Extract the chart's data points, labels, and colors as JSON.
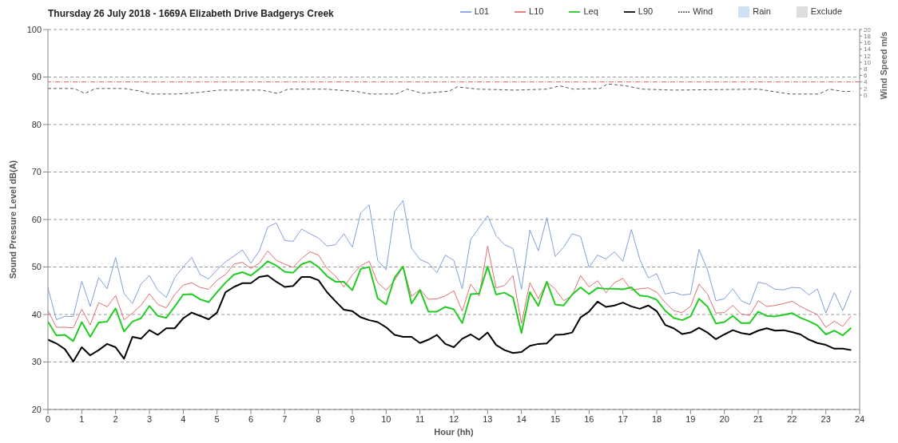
{
  "chart_data": {
    "type": "line",
    "title": "Thursday 26 July 2018 - 1669A Elizabeth Drive Badgerys Creek",
    "xlabel": "Hour (hh)",
    "ylabel": "Sound Pressure Level dB(A)",
    "y2label": "Wind Speed m/s",
    "x": [
      0,
      0.25,
      0.5,
      0.75,
      1,
      1.25,
      1.5,
      1.75,
      2,
      2.25,
      2.5,
      2.75,
      3,
      3.25,
      3.5,
      3.75,
      4,
      4.25,
      4.5,
      4.75,
      5,
      5.25,
      5.5,
      5.75,
      6,
      6.25,
      6.5,
      6.75,
      7,
      7.25,
      7.5,
      7.75,
      8,
      8.25,
      8.5,
      8.75,
      9,
      9.25,
      9.5,
      9.75,
      10,
      10.25,
      10.5,
      10.75,
      11,
      11.25,
      11.5,
      11.75,
      12,
      12.25,
      12.5,
      12.75,
      13,
      13.25,
      13.5,
      13.75,
      14,
      14.25,
      14.5,
      14.75,
      15,
      15.25,
      15.5,
      15.75,
      16,
      16.25,
      16.5,
      16.75,
      17,
      17.25,
      17.5,
      17.75,
      18,
      18.25,
      18.5,
      18.75,
      19,
      19.25,
      19.5,
      19.75,
      20,
      20.25,
      20.5,
      20.75,
      21,
      21.25,
      21.5,
      21.75,
      22,
      22.25,
      22.5,
      22.75,
      23,
      23.25,
      23.5,
      23.75
    ],
    "series": [
      {
        "name": "L01",
        "color": "#7f9fdf",
        "values": [
          45.6,
          38.9,
          39.6,
          39.6,
          47,
          41.7,
          47.8,
          45.4,
          52,
          44.4,
          42.3,
          46.4,
          48.2,
          45.1,
          43.6,
          47.8,
          50,
          52,
          48.4,
          47.5,
          49.4,
          51.1,
          52.3,
          53.6,
          50.8,
          53.4,
          58.4,
          59.3,
          55.6,
          55.4,
          58,
          57,
          56.1,
          54.4,
          54.7,
          57,
          54.2,
          61.4,
          63.1,
          51.4,
          49.4,
          61.7,
          64,
          54,
          51.6,
          50.8,
          48.8,
          52.5,
          51.4,
          45.4,
          55.8,
          58.3,
          60.8,
          56.6,
          54.7,
          53.9,
          45.3,
          57.8,
          53.4,
          60.4,
          52.2,
          54.2,
          57,
          56.4,
          49.9,
          52.5,
          51.7,
          53.2,
          51.2,
          57.9,
          51.6,
          47.7,
          48.6,
          44.3,
          44.7,
          44.1,
          44.3,
          53.7,
          49.4,
          42.9,
          43.3,
          45.4,
          42.9,
          42.1,
          46.8,
          46.4,
          45.3,
          45.2,
          45.7,
          45.6,
          44.1,
          45.4,
          40.3,
          44.6,
          40.8,
          45.1
        ]
      },
      {
        "name": "L10",
        "color": "#e07070",
        "values": [
          40.8,
          37.3,
          37.3,
          37.2,
          41.1,
          37.8,
          42.5,
          41.6,
          44,
          38.9,
          40.3,
          41.9,
          44.4,
          42.1,
          41.4,
          44.2,
          46.2,
          46.7,
          45.7,
          45.3,
          47.2,
          48.4,
          50.6,
          51,
          49.7,
          50.8,
          53.4,
          51.4,
          50.6,
          49.9,
          51.8,
          53.2,
          52.5,
          49.7,
          48.1,
          45.8,
          48.3,
          50.3,
          51.2,
          46.7,
          45.1,
          47.2,
          50,
          43.8,
          45.3,
          43.2,
          43.3,
          43.9,
          45,
          40.7,
          46.4,
          43.9,
          54.4,
          45.6,
          46.1,
          48.2,
          38.1,
          46.7,
          43.3,
          46.9,
          45.3,
          42.9,
          44,
          48.2,
          45.8,
          47.1,
          44.6,
          46.7,
          47.6,
          45.1,
          45.4,
          45.6,
          44.7,
          42.5,
          40.8,
          40.4,
          41.7,
          46.4,
          44.3,
          40.3,
          40.4,
          41.9,
          40.1,
          39.8,
          42.9,
          41.7,
          41.9,
          42.3,
          42.8,
          41.7,
          40.8,
          40,
          37.3,
          38.6,
          37.5,
          39.7
        ]
      },
      {
        "name": "Leq",
        "color": "#22cc22",
        "values": [
          38.5,
          35.6,
          35.7,
          34.4,
          38.4,
          35.3,
          38.3,
          38.5,
          41.3,
          36.4,
          38.5,
          39.2,
          41.8,
          39.7,
          39.3,
          41.7,
          44.2,
          44.3,
          43.2,
          42.6,
          44.7,
          46.7,
          48.4,
          48.9,
          48.2,
          49.6,
          51.2,
          50.3,
          49,
          48.8,
          50.6,
          51.2,
          50,
          48.1,
          46.9,
          46.9,
          45.1,
          49.6,
          50,
          43.4,
          42.1,
          47.8,
          50.1,
          42.3,
          45.1,
          40.6,
          40.6,
          41.6,
          41.1,
          38.2,
          44.3,
          44.4,
          50.1,
          44.2,
          44.6,
          43.6,
          36.1,
          44.7,
          41.8,
          46.9,
          42.1,
          41.9,
          44.2,
          45.7,
          44.3,
          45.6,
          45.4,
          45.4,
          45.3,
          45.7,
          44,
          43.8,
          43.1,
          40.8,
          39.3,
          38.8,
          39.6,
          43.3,
          41.7,
          38.1,
          38.4,
          39.7,
          38.2,
          38.2,
          40.6,
          39.7,
          39.6,
          39.9,
          40.3,
          39.3,
          38.6,
          37.7,
          35.8,
          36.6,
          35.6,
          37.2
        ]
      },
      {
        "name": "L90",
        "color": "#000000",
        "values": [
          34.7,
          33.9,
          32.7,
          30.1,
          33.1,
          31.4,
          32.5,
          33.8,
          33.1,
          30.7,
          35.3,
          34.9,
          36.7,
          35.7,
          37.1,
          37.1,
          39.2,
          40.4,
          39.7,
          39,
          40.4,
          44.7,
          45.8,
          46.6,
          46.6,
          47.9,
          48.2,
          46.9,
          45.8,
          46,
          47.9,
          47.9,
          47.2,
          44.7,
          42.8,
          41,
          40.7,
          39.4,
          38.8,
          38.4,
          37.3,
          35.7,
          35.3,
          35.3,
          34,
          34.7,
          35.7,
          33.8,
          33.1,
          34.9,
          35.8,
          34.7,
          36.2,
          33.6,
          32.5,
          31.9,
          32.1,
          33.4,
          33.8,
          33.9,
          35.7,
          35.8,
          36.2,
          39.4,
          40.6,
          42.7,
          41.6,
          41.9,
          42.5,
          41.7,
          41.2,
          41.9,
          40.7,
          37.8,
          37.1,
          35.9,
          36.2,
          37.2,
          36.2,
          34.8,
          35.8,
          36.7,
          36.1,
          35.8,
          36.6,
          37.1,
          36.6,
          36.7,
          36.3,
          35.8,
          34.7,
          34,
          33.6,
          32.8,
          32.8,
          32.5
        ]
      },
      {
        "name": "Wind",
        "color": "#555555",
        "axis": "y2",
        "line_style": "dashed",
        "x": [
          0,
          0.78,
          1.09,
          1.41,
          2.26,
          2.73,
          3.04,
          3.83,
          4.45,
          5.07,
          6.32,
          6.79,
          7.1,
          8.2,
          9.13,
          9.52,
          10.3,
          10.62,
          11.08,
          11.87,
          12.1,
          12.72,
          13.82,
          14.75,
          15.14,
          15.53,
          16.32,
          16.55,
          17.1,
          17.56,
          18.5,
          21,
          21.94,
          22.79,
          23.1,
          23.5,
          23.81
        ],
        "values": [
          2.0,
          2.0,
          0.5,
          2.0,
          2.0,
          1.2,
          0.3,
          0.3,
          0.8,
          1.5,
          1.5,
          0.5,
          1.8,
          1.8,
          1.1,
          0.3,
          0.3,
          1.8,
          0.5,
          1.2,
          2.5,
          1.8,
          1.5,
          1.8,
          2.8,
          1.8,
          2.0,
          3.4,
          2.8,
          1.8,
          1.5,
          1.8,
          0.3,
          0.3,
          1.8,
          1.1,
          1.1
        ]
      },
      {
        "name": "Rain",
        "type": "area",
        "color": "#cfe2f3",
        "values": [
          null,
          null,
          null,
          null,
          null,
          null,
          null,
          null,
          null,
          null,
          null,
          null,
          null,
          null,
          null,
          null,
          null,
          null,
          null,
          null,
          null,
          null,
          null,
          null,
          null,
          null,
          null,
          null,
          null,
          null,
          null,
          null,
          null,
          null,
          null,
          null,
          null,
          null,
          null,
          null,
          null,
          null,
          null,
          null,
          null,
          null,
          null,
          null,
          null,
          null,
          null,
          null,
          null,
          null,
          null,
          null,
          null,
          null,
          null,
          null,
          null,
          null,
          null,
          null,
          null,
          null,
          null,
          null,
          null,
          null,
          null,
          null,
          null,
          null,
          null,
          null,
          null,
          null,
          null,
          null,
          null,
          null,
          null,
          null,
          null,
          null,
          null,
          null,
          null,
          null,
          null,
          null,
          null,
          null,
          null,
          null
        ]
      },
      {
        "name": "Exclude",
        "type": "area",
        "color": "#dddddd",
        "values": [
          null,
          null,
          null,
          null,
          null,
          null,
          null,
          null,
          null,
          null,
          null,
          null,
          null,
          null,
          null,
          null,
          null,
          null,
          null,
          null,
          null,
          null,
          null,
          null,
          null,
          null,
          null,
          null,
          null,
          null,
          null,
          null,
          null,
          null,
          null,
          null,
          null,
          null,
          null,
          null,
          null,
          null,
          null,
          null,
          null,
          null,
          null,
          null,
          null,
          null,
          null,
          null,
          null,
          null,
          null,
          null,
          null,
          null,
          null,
          null,
          null,
          null,
          null,
          null,
          null,
          null,
          null,
          null,
          null,
          null,
          null,
          null,
          null,
          null,
          null,
          null,
          null,
          null,
          null,
          null,
          null,
          null,
          null,
          null,
          null,
          null,
          null,
          null,
          null,
          null,
          null,
          null,
          null,
          null,
          null,
          null
        ]
      }
    ],
    "xlim": [
      0,
      24
    ],
    "xticks": [
      0,
      1,
      2,
      3,
      4,
      5,
      6,
      7,
      8,
      9,
      10,
      11,
      12,
      13,
      14,
      15,
      16,
      17,
      18,
      19,
      20,
      21,
      22,
      23,
      24
    ],
    "ylim": [
      20,
      100
    ],
    "yticks": [
      20,
      30,
      40,
      50,
      60,
      70,
      80,
      90,
      100
    ],
    "y2lim": [
      -96,
      20
    ],
    "y2ticks": [
      0,
      2,
      4,
      6,
      8,
      10,
      12,
      14,
      16,
      18,
      20
    ],
    "ref_lines": [
      {
        "axis": "y2",
        "value": 4,
        "color": "#e06060",
        "line_style": "dashed"
      }
    ],
    "grid": "y",
    "legend": "top right"
  }
}
